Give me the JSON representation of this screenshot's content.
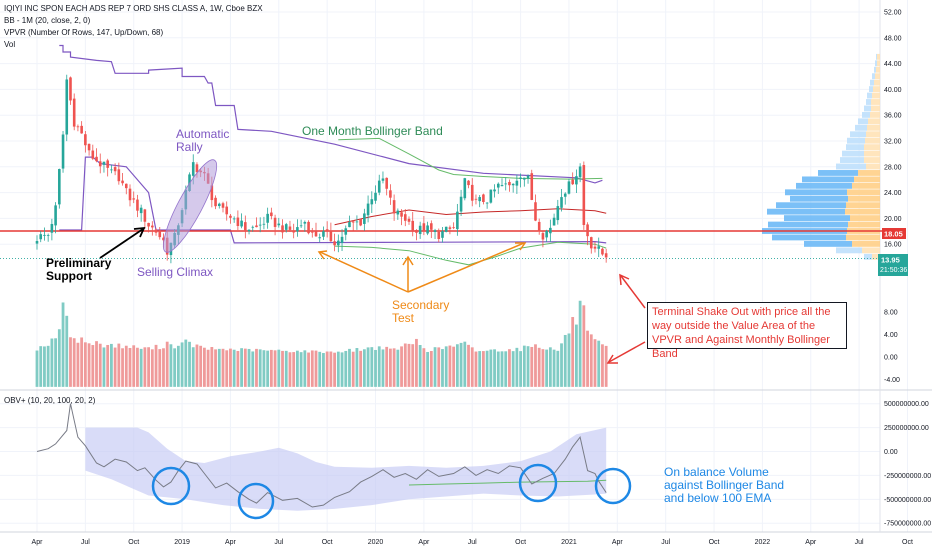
{
  "header": {
    "title": "IQIYI INC SPON EACH ADS REP 7 ORD SHS CLASS A, 1W, Cboe BZX",
    "bb": "BB - 1M (20, close, 2, 0)",
    "vpvr": "VPVR (Number Of Rows, 147, Up/Down, 68)",
    "vol": "Vol",
    "obv": "OBV+ (10, 20, 100, 20, 2)"
  },
  "colors": {
    "up": "#26a69a",
    "down": "#ef5350",
    "vol_up": "#80cbc4",
    "vol_down": "#ef9a9a",
    "bb_purple": "#7e57c2",
    "bb_green": "#66bb6a",
    "basis_red": "#c62828",
    "support_red": "#e53935",
    "price_teal": "#26a69a",
    "obv_line": "#787b86",
    "obv_band": "#c5c9f5",
    "vp_up": "#bbdefb",
    "vp_down": "#ffe0b2",
    "vp_value": "#64b5f6"
  },
  "annotations": {
    "automatic_rally": "Automatic\nRally",
    "one_month_bb": "One Month Bollinger Band",
    "preliminary_support": "Preliminary\nSupport",
    "selling_climax": "Selling Climax",
    "secondary_test": "Secondary\nTest",
    "terminal_shakeout": "Terminal Shake Out with price all the way outside the Value Area of the VPVR and Against Monthly Bollinger Band",
    "obv_note": "On balance Volume\nagainst Bollinger Band\nand below 100 EMA"
  },
  "price_badges": {
    "support": "18.05",
    "last": "13.95",
    "countdown": "21:50:36"
  },
  "chart_data": [
    {
      "type": "candlestick",
      "ylim": [
        12,
        52
      ],
      "yticks": [
        "52.00",
        "48.00",
        "44.00",
        "40.00",
        "36.00",
        "32.00",
        "28.00",
        "24.00",
        "20.00",
        "16.00"
      ],
      "support_level": 18.05,
      "last_price": 13.95,
      "x_labels": [
        "Apr",
        "Jul",
        "Oct",
        "2019",
        "Apr",
        "Jul",
        "Oct",
        "2020",
        "Apr",
        "Jul",
        "Oct",
        "2021",
        "Apr",
        "Jul",
        "Oct",
        "2022",
        "Apr",
        "Jul",
        "Oct"
      ],
      "x_label_weeks": [
        0,
        13,
        26,
        39,
        52,
        65,
        78,
        91,
        104,
        117,
        130,
        143,
        156,
        169,
        182,
        195,
        208,
        221,
        234
      ],
      "close_anchors": [
        [
          0,
          17
        ],
        [
          3,
          17.5
        ],
        [
          5,
          21.5
        ],
        [
          7,
          33
        ],
        [
          8,
          41.5
        ],
        [
          10,
          35
        ],
        [
          12,
          33
        ],
        [
          14,
          30
        ],
        [
          16,
          29
        ],
        [
          18,
          28
        ],
        [
          20,
          27
        ],
        [
          22,
          26.5
        ],
        [
          24,
          24
        ],
        [
          26,
          22.5
        ],
        [
          28,
          21
        ],
        [
          30,
          19
        ],
        [
          32,
          18
        ],
        [
          34,
          16.5
        ],
        [
          35,
          15
        ],
        [
          37,
          17
        ],
        [
          40,
          24
        ],
        [
          42,
          28.5
        ],
        [
          45,
          26.5
        ],
        [
          48,
          22
        ],
        [
          50,
          21
        ],
        [
          53,
          20
        ],
        [
          56,
          18.5
        ],
        [
          59,
          18.5
        ],
        [
          62,
          20
        ],
        [
          66,
          18.5
        ],
        [
          69,
          18
        ],
        [
          72,
          19.5
        ],
        [
          74,
          17.5
        ],
        [
          77,
          17.5
        ],
        [
          80,
          16.5
        ],
        [
          81,
          16.5
        ],
        [
          84,
          19
        ],
        [
          87,
          19.5
        ],
        [
          90,
          23.5
        ],
        [
          93,
          26
        ],
        [
          96,
          21
        ],
        [
          99,
          20
        ],
        [
          102,
          18
        ],
        [
          104,
          18.5
        ],
        [
          108,
          17.5
        ],
        [
          112,
          18.5
        ],
        [
          115,
          25.5
        ],
        [
          118,
          22.5
        ],
        [
          121,
          23
        ],
        [
          124,
          25
        ],
        [
          127,
          25
        ],
        [
          130,
          27
        ],
        [
          132,
          26
        ],
        [
          134,
          20
        ],
        [
          136,
          17.5
        ],
        [
          138,
          18.5
        ],
        [
          141,
          24
        ],
        [
          143,
          25
        ],
        [
          145,
          27
        ],
        [
          146,
          28
        ],
        [
          147,
          19
        ],
        [
          149,
          16
        ],
        [
          151,
          15
        ],
        [
          153,
          13.95
        ]
      ],
      "volume_ylim": [
        -5.5,
        10.5
      ],
      "volume_ticks": [
        "8.00",
        "4.00",
        "0.00",
        "-4.00"
      ],
      "volume_anchors": [
        [
          0,
          1.5
        ],
        [
          5,
          3
        ],
        [
          7,
          8.5
        ],
        [
          8,
          6
        ],
        [
          9,
          4.5
        ],
        [
          10,
          3.5
        ],
        [
          14,
          2.5
        ],
        [
          30,
          1.5
        ],
        [
          34,
          2
        ],
        [
          35,
          2.5
        ],
        [
          38,
          1.8
        ],
        [
          40,
          2.6
        ],
        [
          45,
          1.5
        ],
        [
          60,
          1.2
        ],
        [
          80,
          0.9
        ],
        [
          90,
          1.6
        ],
        [
          93,
          1.8
        ],
        [
          95,
          1.2
        ],
        [
          100,
          2.2
        ],
        [
          102,
          2.8
        ],
        [
          105,
          1.2
        ],
        [
          115,
          2.3
        ],
        [
          118,
          1.1
        ],
        [
          130,
          1.4
        ],
        [
          133,
          2.2
        ],
        [
          140,
          1.2
        ],
        [
          145,
          7
        ],
        [
          146,
          9
        ],
        [
          147,
          7.5
        ],
        [
          148,
          4
        ],
        [
          150,
          2.6
        ],
        [
          153,
          1.8
        ]
      ],
      "bb_upper": [
        [
          6,
          46.8
        ],
        [
          7,
          46.8
        ],
        [
          7,
          45.8
        ],
        [
          9,
          45.8
        ],
        [
          9,
          45
        ],
        [
          16,
          44.5
        ],
        [
          20,
          44.3
        ],
        [
          21,
          42.5
        ],
        [
          30,
          42.5
        ],
        [
          30,
          43
        ],
        [
          39,
          43.3
        ],
        [
          39,
          42
        ],
        [
          45,
          42
        ],
        [
          46,
          41
        ],
        [
          47,
          41
        ],
        [
          48,
          37.5
        ],
        [
          53,
          37.5
        ],
        [
          54,
          33.8
        ],
        [
          63,
          33.5
        ],
        [
          80,
          31.5
        ],
        [
          100,
          28.5
        ],
        [
          120,
          27
        ],
        [
          145,
          26.3
        ],
        [
          150,
          25.5
        ],
        [
          152,
          25.9
        ]
      ],
      "bb_lower": [
        [
          6,
          18.2
        ],
        [
          12,
          18.2
        ],
        [
          13,
          29.5
        ],
        [
          15,
          29.5
        ],
        [
          17,
          28.5
        ],
        [
          24,
          28
        ],
        [
          30,
          24
        ],
        [
          32,
          18.2
        ],
        [
          52,
          18.2
        ],
        [
          53,
          16.2
        ],
        [
          100,
          16.3
        ],
        [
          150,
          16.4
        ],
        [
          153,
          16.2
        ]
      ],
      "bb_green_upper": [
        [
          81,
          32.2
        ],
        [
          92,
          32.4
        ],
        [
          100,
          30
        ],
        [
          108,
          27.5
        ],
        [
          112,
          26.8
        ],
        [
          120,
          26.5
        ],
        [
          130,
          26.2
        ],
        [
          143,
          26.1
        ],
        [
          152,
          26.2
        ]
      ],
      "bb_green_lower": [
        [
          80,
          15.7
        ],
        [
          90,
          15.5
        ],
        [
          100,
          15
        ],
        [
          110,
          13.5
        ],
        [
          116,
          12.8
        ],
        [
          123,
          14
        ],
        [
          130,
          15.4
        ],
        [
          140,
          16.3
        ],
        [
          150,
          16
        ],
        [
          153,
          15.4
        ]
      ],
      "bb_basis": [
        [
          80,
          19
        ],
        [
          90,
          20.3
        ],
        [
          100,
          21.3
        ],
        [
          110,
          20.6
        ],
        [
          120,
          21
        ],
        [
          130,
          21.2
        ],
        [
          140,
          21.5
        ],
        [
          150,
          21.2
        ],
        [
          153,
          20.8
        ]
      ],
      "vpvr_ylim": [
        12,
        52
      ],
      "vpvr": [
        [
          45,
          4,
          1
        ],
        [
          44,
          5,
          2
        ],
        [
          43,
          6,
          2
        ],
        [
          42,
          8,
          3
        ],
        [
          41,
          10,
          4
        ],
        [
          40,
          11,
          4
        ],
        [
          39,
          13,
          5
        ],
        [
          38,
          14,
          5
        ],
        [
          37,
          16,
          7
        ],
        [
          36,
          18,
          8
        ],
        [
          35,
          22,
          10
        ],
        [
          34,
          25,
          12
        ],
        [
          33,
          30,
          16
        ],
        [
          32,
          33,
          18
        ],
        [
          31,
          34,
          18
        ],
        [
          30,
          38,
          22
        ],
        [
          29,
          40,
          24
        ],
        [
          28,
          44,
          30
        ],
        [
          27,
          62,
          40
        ],
        [
          26,
          78,
          52
        ],
        [
          25,
          84,
          56
        ],
        [
          24,
          95,
          62
        ],
        [
          23,
          90,
          58
        ],
        [
          22,
          104,
          70
        ],
        [
          21,
          113,
          78
        ],
        [
          20,
          96,
          66
        ],
        [
          19,
          112,
          80
        ],
        [
          18,
          118,
          85
        ],
        [
          17,
          108,
          74
        ],
        [
          16,
          76,
          48
        ],
        [
          15,
          44,
          26
        ],
        [
          14,
          16,
          8
        ]
      ]
    },
    {
      "type": "line",
      "ylim": [
        -800000000,
        560000000
      ],
      "yticks": [
        "500000000.00",
        "250000000.00",
        "0.00",
        "-250000000.00",
        "-500000000.00",
        "-750000000.00"
      ],
      "obv": [
        [
          0,
          0
        ],
        [
          3,
          30000000
        ],
        [
          5,
          80000000
        ],
        [
          8,
          220000000
        ],
        [
          9,
          500000000
        ],
        [
          11,
          150000000
        ],
        [
          13,
          60000000
        ],
        [
          16,
          -120000000
        ],
        [
          18,
          -160000000
        ],
        [
          21,
          -80000000
        ],
        [
          24,
          -110000000
        ],
        [
          27,
          -200000000
        ],
        [
          29,
          -170000000
        ],
        [
          32,
          -300000000
        ],
        [
          34,
          -370000000
        ],
        [
          36,
          -320000000
        ],
        [
          38,
          -200000000
        ],
        [
          40,
          -100000000
        ],
        [
          43,
          -130000000
        ],
        [
          45,
          -230000000
        ],
        [
          48,
          -380000000
        ],
        [
          51,
          -330000000
        ],
        [
          54,
          -420000000
        ],
        [
          57,
          -500000000
        ],
        [
          59,
          -540000000
        ],
        [
          62,
          -430000000
        ],
        [
          66,
          -510000000
        ],
        [
          70,
          -490000000
        ],
        [
          74,
          -580000000
        ],
        [
          77,
          -560000000
        ],
        [
          80,
          -480000000
        ],
        [
          84,
          -420000000
        ],
        [
          87,
          -320000000
        ],
        [
          90,
          -260000000
        ],
        [
          93,
          -190000000
        ],
        [
          96,
          -270000000
        ],
        [
          99,
          -230000000
        ],
        [
          102,
          -290000000
        ],
        [
          105,
          -190000000
        ],
        [
          108,
          -260000000
        ],
        [
          112,
          -230000000
        ],
        [
          115,
          -160000000
        ],
        [
          118,
          -250000000
        ],
        [
          121,
          -190000000
        ],
        [
          124,
          -230000000
        ],
        [
          127,
          -150000000
        ],
        [
          130,
          -170000000
        ],
        [
          133,
          -340000000
        ],
        [
          136,
          -280000000
        ],
        [
          139,
          -230000000
        ],
        [
          142,
          -80000000
        ],
        [
          144,
          50000000
        ],
        [
          146,
          150000000
        ],
        [
          148,
          -200000000
        ],
        [
          150,
          -230000000
        ],
        [
          151,
          -310000000
        ],
        [
          153,
          -430000000
        ]
      ],
      "band_upper": [
        [
          13,
          250000000
        ],
        [
          20,
          250000000
        ],
        [
          27,
          250000000
        ],
        [
          30,
          200000000
        ],
        [
          35,
          30000000
        ],
        [
          40,
          -100000000
        ],
        [
          45,
          -120000000
        ],
        [
          52,
          -50000000
        ],
        [
          60,
          0
        ],
        [
          65,
          40000000
        ],
        [
          70,
          -20000000
        ],
        [
          75,
          -110000000
        ],
        [
          80,
          -160000000
        ],
        [
          90,
          -170000000
        ],
        [
          100,
          -150000000
        ],
        [
          110,
          -170000000
        ],
        [
          120,
          -150000000
        ],
        [
          130,
          -100000000
        ],
        [
          138,
          0
        ],
        [
          145,
          180000000
        ],
        [
          153,
          250000000
        ]
      ],
      "band_lower": [
        [
          13,
          -200000000
        ],
        [
          20,
          -290000000
        ],
        [
          30,
          -460000000
        ],
        [
          40,
          -500000000
        ],
        [
          50,
          -560000000
        ],
        [
          60,
          -600000000
        ],
        [
          70,
          -620000000
        ],
        [
          80,
          -600000000
        ],
        [
          90,
          -560000000
        ],
        [
          100,
          -500000000
        ],
        [
          110,
          -470000000
        ],
        [
          120,
          -440000000
        ],
        [
          130,
          -460000000
        ],
        [
          140,
          -470000000
        ],
        [
          150,
          -450000000
        ],
        [
          153,
          -440000000
        ]
      ],
      "ema": [
        [
          100,
          -350000000
        ],
        [
          110,
          -340000000
        ],
        [
          120,
          -330000000
        ],
        [
          130,
          -320000000
        ],
        [
          140,
          -315000000
        ],
        [
          148,
          -310000000
        ],
        [
          153,
          -300000000
        ]
      ]
    }
  ]
}
